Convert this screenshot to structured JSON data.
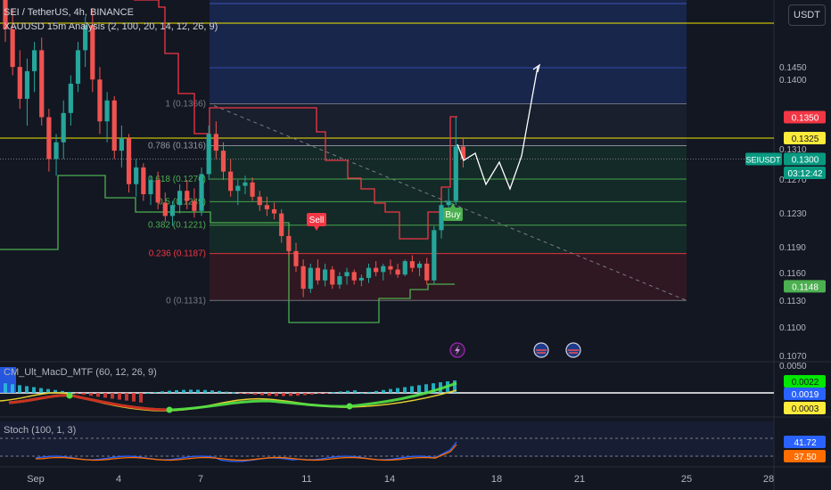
{
  "header": {
    "symbol_line": "SEI / TetherUS, 4h, BINANCE",
    "indicator_line": "XAUUSD 15m Analysis (2, 100, 20, 14, 12, 26, 9)",
    "currency": "USDT"
  },
  "colors": {
    "background": "#131722",
    "up": "#26a69a",
    "down": "#ef5350",
    "fib_fill_top": "#1c2c5a",
    "fib_fill_green": "#15332b",
    "fib_fill_red": "#3a1a22",
    "yellow_line": "#f2e600",
    "projection": "#ffffff",
    "macd_line": "#e6cf2e",
    "macd_signal_up": "#54e345",
    "macd_signal_down": "#d91e1e",
    "stoch_k": "#2962ff",
    "stoch_d": "#ff6d00"
  },
  "price_axis": {
    "tick_labels": [
      "0.1450",
      "0.1400",
      "0.1310",
      "0.1270",
      "0.1230",
      "0.1190",
      "0.1160",
      "0.1130",
      "0.1100",
      "0.1070"
    ],
    "tags": [
      {
        "text": "0.1350",
        "price": 0.135,
        "bg": "#f23645",
        "fg": "#ffffff"
      },
      {
        "text": "0.1325",
        "price": 0.1325,
        "bg": "#ffeb3b",
        "fg": "#131722"
      },
      {
        "text": "0.1300",
        "price": 0.13,
        "bg": "#089981",
        "fg": "#ffffff"
      },
      {
        "text": "03:12:42",
        "price": 0.12835,
        "bg": "#089981",
        "fg": "#ffffff"
      },
      {
        "text": "0.1148",
        "price": 0.1148,
        "bg": "#4caf50",
        "fg": "#ffffff"
      }
    ],
    "symbol_tag": {
      "text": "SEIUSDT",
      "price": 0.13
    }
  },
  "time_axis": {
    "labels": [
      "Sep",
      "4",
      "7",
      "11",
      "14",
      "18",
      "21",
      "25",
      "28"
    ]
  },
  "fib_levels": [
    {
      "ratio": "1",
      "value": "(0.1366)",
      "price": 0.1366,
      "color": "#787b86"
    },
    {
      "ratio": "0.786",
      "value": "(0.1316)",
      "price": 0.1316,
      "color": "#9598a1"
    },
    {
      "ratio": "0.618",
      "value": "(0.1276)",
      "price": 0.1276,
      "color": "#4caf50"
    },
    {
      "ratio": "0.5",
      "value": "(0.1249)",
      "price": 0.1249,
      "color": "#4caf50"
    },
    {
      "ratio": "0.382",
      "value": "(0.1221)",
      "price": 0.1221,
      "color": "#4caf50"
    },
    {
      "ratio": "0.236",
      "value": "(0.1187)",
      "price": 0.1187,
      "color": "#f23645"
    },
    {
      "ratio": "0",
      "value": "(0.1131)",
      "price": 0.1131,
      "color": "#787b86"
    }
  ],
  "signals": [
    {
      "label": "Sell",
      "type": "sell"
    },
    {
      "label": "Buy",
      "type": "buy"
    }
  ],
  "macd_panel": {
    "title": "CM_Ult_MacD_MTF (60, 12, 26, 9)",
    "axis_label": "0.0050",
    "tags": [
      {
        "text": "0.0022",
        "bg": "#00e600",
        "fg": "#131722"
      },
      {
        "text": "0.0019",
        "bg": "#2962ff",
        "fg": "#ffffff"
      },
      {
        "text": "0.0003",
        "bg": "#ffeb3b",
        "fg": "#131722"
      }
    ]
  },
  "stoch_panel": {
    "title": "Stoch (100, 1, 3)",
    "tags": [
      {
        "text": "41.72",
        "bg": "#2962ff",
        "fg": "#ffffff"
      },
      {
        "text": "37.50",
        "bg": "#ff6d00",
        "fg": "#ffffff"
      }
    ]
  },
  "chart_data": {
    "type": "candlestick",
    "symbol": "SEIUSDT",
    "timeframe": "4h",
    "ylim": [
      0.106,
      0.149
    ],
    "last_price": 0.13,
    "candles": [
      [
        0.15,
        0.151,
        0.144,
        0.1455
      ],
      [
        0.1455,
        0.148,
        0.14,
        0.141
      ],
      [
        0.141,
        0.143,
        0.136,
        0.1372
      ],
      [
        0.1372,
        0.142,
        0.134,
        0.1405
      ],
      [
        0.1405,
        0.144,
        0.138,
        0.143
      ],
      [
        0.143,
        0.1445,
        0.134,
        0.135
      ],
      [
        0.135,
        0.136,
        0.1285,
        0.13
      ],
      [
        0.13,
        0.133,
        0.128,
        0.132
      ],
      [
        0.132,
        0.137,
        0.13,
        0.1355
      ],
      [
        0.1355,
        0.14,
        0.134,
        0.139
      ],
      [
        0.139,
        0.144,
        0.138,
        0.143
      ],
      [
        0.143,
        0.147,
        0.141,
        0.146
      ],
      [
        0.146,
        0.148,
        0.138,
        0.1395
      ],
      [
        0.1395,
        0.141,
        0.133,
        0.1345
      ],
      [
        0.1345,
        0.138,
        0.132,
        0.137
      ],
      [
        0.137,
        0.1375,
        0.13,
        0.131
      ],
      [
        0.131,
        0.134,
        0.129,
        0.1325
      ],
      [
        0.1325,
        0.133,
        0.126,
        0.127
      ],
      [
        0.127,
        0.13,
        0.1255,
        0.129
      ],
      [
        0.129,
        0.1295,
        0.125,
        0.1258
      ],
      [
        0.1258,
        0.128,
        0.1245,
        0.1275
      ],
      [
        0.1275,
        0.1285,
        0.124,
        0.1248
      ],
      [
        0.1248,
        0.126,
        0.1225,
        0.1232
      ],
      [
        0.1232,
        0.125,
        0.122,
        0.1245
      ],
      [
        0.1245,
        0.127,
        0.1235,
        0.1262
      ],
      [
        0.1262,
        0.1275,
        0.124,
        0.125
      ],
      [
        0.125,
        0.1265,
        0.123,
        0.1238
      ],
      [
        0.1238,
        0.129,
        0.1232,
        0.1282
      ],
      [
        0.1282,
        0.134,
        0.1275,
        0.133
      ],
      [
        0.133,
        0.1345,
        0.13,
        0.131
      ],
      [
        0.131,
        0.132,
        0.1275,
        0.1285
      ],
      [
        0.1285,
        0.13,
        0.1255,
        0.1262
      ],
      [
        0.1262,
        0.1275,
        0.1245,
        0.1268
      ],
      [
        0.1268,
        0.128,
        0.1258,
        0.1272
      ],
      [
        0.1272,
        0.1278,
        0.125,
        0.1255
      ],
      [
        0.1255,
        0.1262,
        0.1238,
        0.1245
      ],
      [
        0.1245,
        0.1255,
        0.1232,
        0.124
      ],
      [
        0.124,
        0.1248,
        0.1228,
        0.1235
      ],
      [
        0.1235,
        0.124,
        0.12,
        0.1208
      ],
      [
        0.1208,
        0.1215,
        0.1185,
        0.119
      ],
      [
        0.119,
        0.12,
        0.1165,
        0.1172
      ],
      [
        0.1172,
        0.118,
        0.1135,
        0.1145
      ],
      [
        0.1145,
        0.1175,
        0.114,
        0.117
      ],
      [
        0.117,
        0.118,
        0.115,
        0.1155
      ],
      [
        0.1155,
        0.1175,
        0.1148,
        0.1168
      ],
      [
        0.1168,
        0.1172,
        0.1145,
        0.115
      ],
      [
        0.115,
        0.1165,
        0.1145,
        0.116
      ],
      [
        0.116,
        0.117,
        0.115,
        0.1165
      ],
      [
        0.1165,
        0.1168,
        0.115,
        0.1155
      ],
      [
        0.1155,
        0.1162,
        0.1148,
        0.1158
      ],
      [
        0.1158,
        0.1175,
        0.1152,
        0.117
      ],
      [
        0.117,
        0.1178,
        0.116,
        0.1165
      ],
      [
        0.1165,
        0.1175,
        0.1155,
        0.1172
      ],
      [
        0.1172,
        0.118,
        0.1162,
        0.1168
      ],
      [
        0.1168,
        0.1175,
        0.1158,
        0.1162
      ],
      [
        0.1162,
        0.118,
        0.116,
        0.1178
      ],
      [
        0.1178,
        0.1185,
        0.1165,
        0.117
      ],
      [
        0.117,
        0.1178,
        0.116,
        0.1175
      ],
      [
        0.1175,
        0.1182,
        0.115,
        0.1155
      ],
      [
        0.1155,
        0.122,
        0.115,
        0.1215
      ],
      [
        0.1215,
        0.125,
        0.1205,
        0.1245
      ],
      [
        0.1245,
        0.1265,
        0.1238,
        0.125
      ],
      [
        0.125,
        0.135,
        0.1245,
        0.1315
      ],
      [
        0.1315,
        0.1325,
        0.129,
        0.13
      ]
    ],
    "projection_path": [
      [
        0.13,
        0.129
      ],
      [
        0.128,
        0.127
      ],
      [
        0.1282,
        0.1298
      ],
      [
        0.1285,
        0.13
      ],
      [
        0.1355,
        0.1375
      ],
      [
        0.1385,
        0.136
      ],
      [
        0.137,
        0.143
      ]
    ]
  }
}
